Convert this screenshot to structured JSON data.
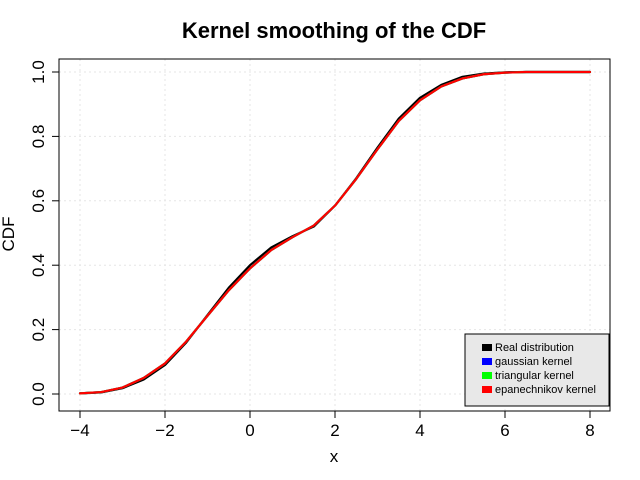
{
  "chart_data": {
    "type": "line",
    "title": "Kernel smoothing of the CDF",
    "xlabel": "x",
    "ylabel": "CDF",
    "xlim": [
      -4,
      8
    ],
    "ylim": [
      0,
      1
    ],
    "xticks": [
      -4,
      -2,
      0,
      2,
      4,
      6,
      8
    ],
    "xtick_labels": [
      "−4",
      "−2",
      "0",
      "2",
      "4",
      "6",
      "8"
    ],
    "yticks": [
      0.0,
      0.2,
      0.4,
      0.6,
      0.8,
      1.0
    ],
    "ytick_labels": [
      "0.0",
      "0.2",
      "0.4",
      "0.6",
      "0.8",
      "1.0"
    ],
    "grid": true,
    "legend_position": "bottom-right",
    "series": [
      {
        "name": "Real distribution",
        "color": "#000000",
        "x": [
          -4,
          -3.5,
          -3,
          -2.5,
          -2,
          -1.5,
          -1,
          -0.5,
          0,
          0.5,
          1,
          1.5,
          2,
          2.5,
          3,
          3.5,
          4,
          4.5,
          5,
          5.5,
          6,
          6.5,
          7,
          7.5,
          8
        ],
        "y": [
          0.002,
          0.005,
          0.018,
          0.045,
          0.09,
          0.16,
          0.245,
          0.33,
          0.4,
          0.455,
          0.49,
          0.52,
          0.585,
          0.67,
          0.765,
          0.855,
          0.92,
          0.96,
          0.985,
          0.995,
          0.999,
          1.0,
          1.0,
          1.0,
          1.0
        ]
      },
      {
        "name": "gaussian kernel",
        "color": "#0000ff",
        "x": [
          -4,
          -3.5,
          -3,
          -2.5,
          -2,
          -1.5,
          -1,
          -0.5,
          0,
          0.5,
          1,
          1.5,
          2,
          2.5,
          3,
          3.5,
          4,
          4.5,
          5,
          5.5,
          6,
          6.5,
          7,
          7.5,
          8
        ],
        "y": [
          0.002,
          0.006,
          0.02,
          0.05,
          0.095,
          0.163,
          0.243,
          0.322,
          0.39,
          0.447,
          0.487,
          0.523,
          0.585,
          0.668,
          0.76,
          0.848,
          0.912,
          0.955,
          0.98,
          0.993,
          0.998,
          1.0,
          1.0,
          1.0,
          1.0
        ]
      },
      {
        "name": "triangular kernel",
        "color": "#00ff00",
        "x": [
          -4,
          -3.5,
          -3,
          -2.5,
          -2,
          -1.5,
          -1,
          -0.5,
          0,
          0.5,
          1,
          1.5,
          2,
          2.5,
          3,
          3.5,
          4,
          4.5,
          5,
          5.5,
          6,
          6.5,
          7,
          7.5,
          8
        ],
        "y": [
          0.002,
          0.006,
          0.02,
          0.05,
          0.095,
          0.163,
          0.243,
          0.322,
          0.39,
          0.447,
          0.487,
          0.523,
          0.585,
          0.668,
          0.76,
          0.848,
          0.912,
          0.955,
          0.98,
          0.993,
          0.998,
          1.0,
          1.0,
          1.0,
          1.0
        ]
      },
      {
        "name": "epanechnikov kernel",
        "color": "#ff0000",
        "x": [
          -4,
          -3.5,
          -3,
          -2.5,
          -2,
          -1.5,
          -1,
          -0.5,
          0,
          0.5,
          1,
          1.5,
          2,
          2.5,
          3,
          3.5,
          4,
          4.5,
          5,
          5.5,
          6,
          6.5,
          7,
          7.5,
          8
        ],
        "y": [
          0.002,
          0.006,
          0.02,
          0.05,
          0.095,
          0.163,
          0.243,
          0.322,
          0.39,
          0.447,
          0.487,
          0.523,
          0.585,
          0.668,
          0.76,
          0.848,
          0.912,
          0.955,
          0.98,
          0.993,
          0.998,
          1.0,
          1.0,
          1.0,
          1.0
        ]
      }
    ]
  }
}
